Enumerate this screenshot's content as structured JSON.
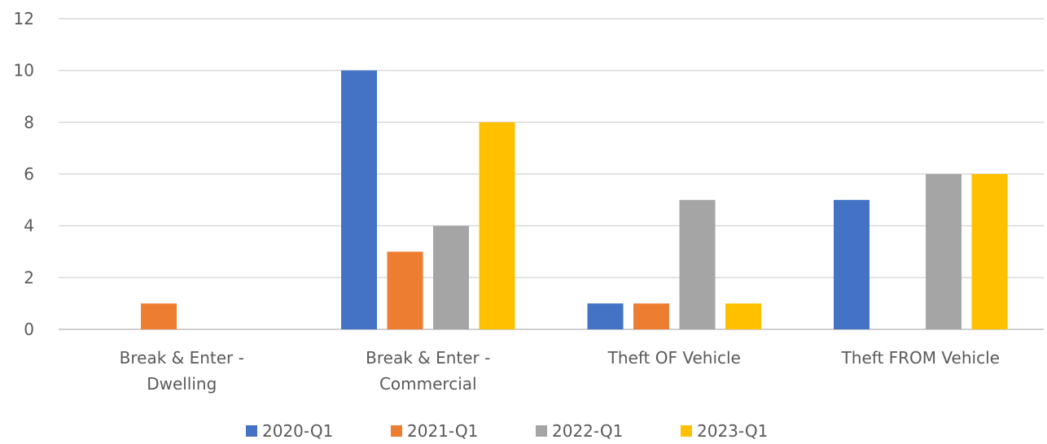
{
  "chart_data": {
    "type": "bar",
    "title": "",
    "xlabel": "",
    "ylabel": "",
    "ylim": [
      0,
      12
    ],
    "yticks": [
      0,
      2,
      4,
      6,
      8,
      10,
      12
    ],
    "grid": true,
    "legend_position": "bottom",
    "categories": [
      [
        "Break & Enter -",
        "Dwelling"
      ],
      [
        "Break & Enter -",
        "Commercial"
      ],
      [
        "Theft OF Vehicle"
      ],
      [
        "Theft FROM Vehicle"
      ]
    ],
    "series": [
      {
        "name": "2020-Q1",
        "color": "#4472c4",
        "values": [
          0,
          10,
          1,
          5
        ]
      },
      {
        "name": "2021-Q1",
        "color": "#ed7d31",
        "values": [
          1,
          3,
          1,
          0
        ]
      },
      {
        "name": "2022-Q1",
        "color": "#a5a5a5",
        "values": [
          0,
          4,
          5,
          6
        ]
      },
      {
        "name": "2023-Q1",
        "color": "#ffc000",
        "values": [
          0,
          8,
          1,
          6
        ]
      }
    ]
  }
}
